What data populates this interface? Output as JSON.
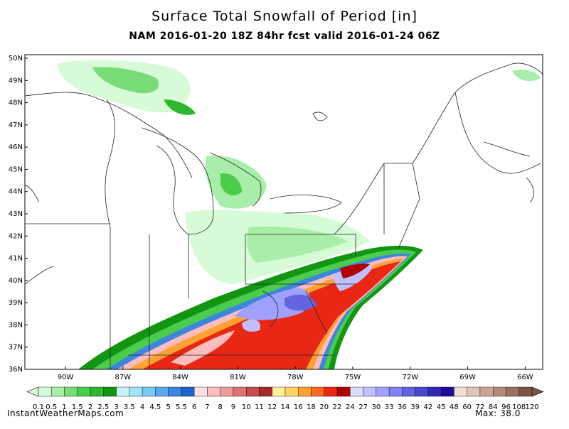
{
  "header": {
    "title": "Surface Total Snowfall of Period [in]",
    "subtitle": "NAM 2016-01-20 18Z 84hr fcst valid 2016-01-24 06Z"
  },
  "map": {
    "lat_labels": [
      "50N",
      "49N",
      "48N",
      "47N",
      "46N",
      "45N",
      "44N",
      "43N",
      "42N",
      "41N",
      "40N",
      "39N",
      "38N",
      "37N",
      "36N"
    ],
    "lon_labels": [
      "90W",
      "87W",
      "84W",
      "81W",
      "78W",
      "75W",
      "72W",
      "69W",
      "66W"
    ]
  },
  "colorbar": {
    "labels": [
      "0.1",
      "0.5",
      "1",
      "1.5",
      "2",
      "2.5",
      "3",
      "3.5",
      "4",
      "4.5",
      "5",
      "5.5",
      "6",
      "7",
      "8",
      "9",
      "10",
      "11",
      "12",
      "14",
      "16",
      "18",
      "20",
      "22",
      "24",
      "27",
      "30",
      "33",
      "36",
      "39",
      "42",
      "45",
      "48",
      "60",
      "72",
      "84",
      "96",
      "108",
      "120"
    ],
    "colors": [
      "#d6fbd6",
      "#a8eea8",
      "#78dd78",
      "#4ccc4c",
      "#2cb82c",
      "#129612",
      "#c8f4ff",
      "#a0e6fa",
      "#78c8f8",
      "#5aa8f0",
      "#3c86e0",
      "#1e62cc",
      "#ffe0e0",
      "#ffbcbc",
      "#f09a9a",
      "#dc7474",
      "#c84c4c",
      "#a82a2a",
      "#fff09c",
      "#ffd266",
      "#ffa232",
      "#ff6a1e",
      "#e82814",
      "#b00000",
      "#dcdcff",
      "#c0c0ff",
      "#a0a0ff",
      "#8282f0",
      "#6464e0",
      "#4848d0",
      "#3228b4",
      "#200c96",
      "#f0e0d4",
      "#e0c4b4",
      "#cca494",
      "#b88878",
      "#9c7060",
      "#7a5444"
    ]
  },
  "footer": {
    "source": "InstantWeatherMaps.com",
    "max": "Max:  38.0"
  }
}
